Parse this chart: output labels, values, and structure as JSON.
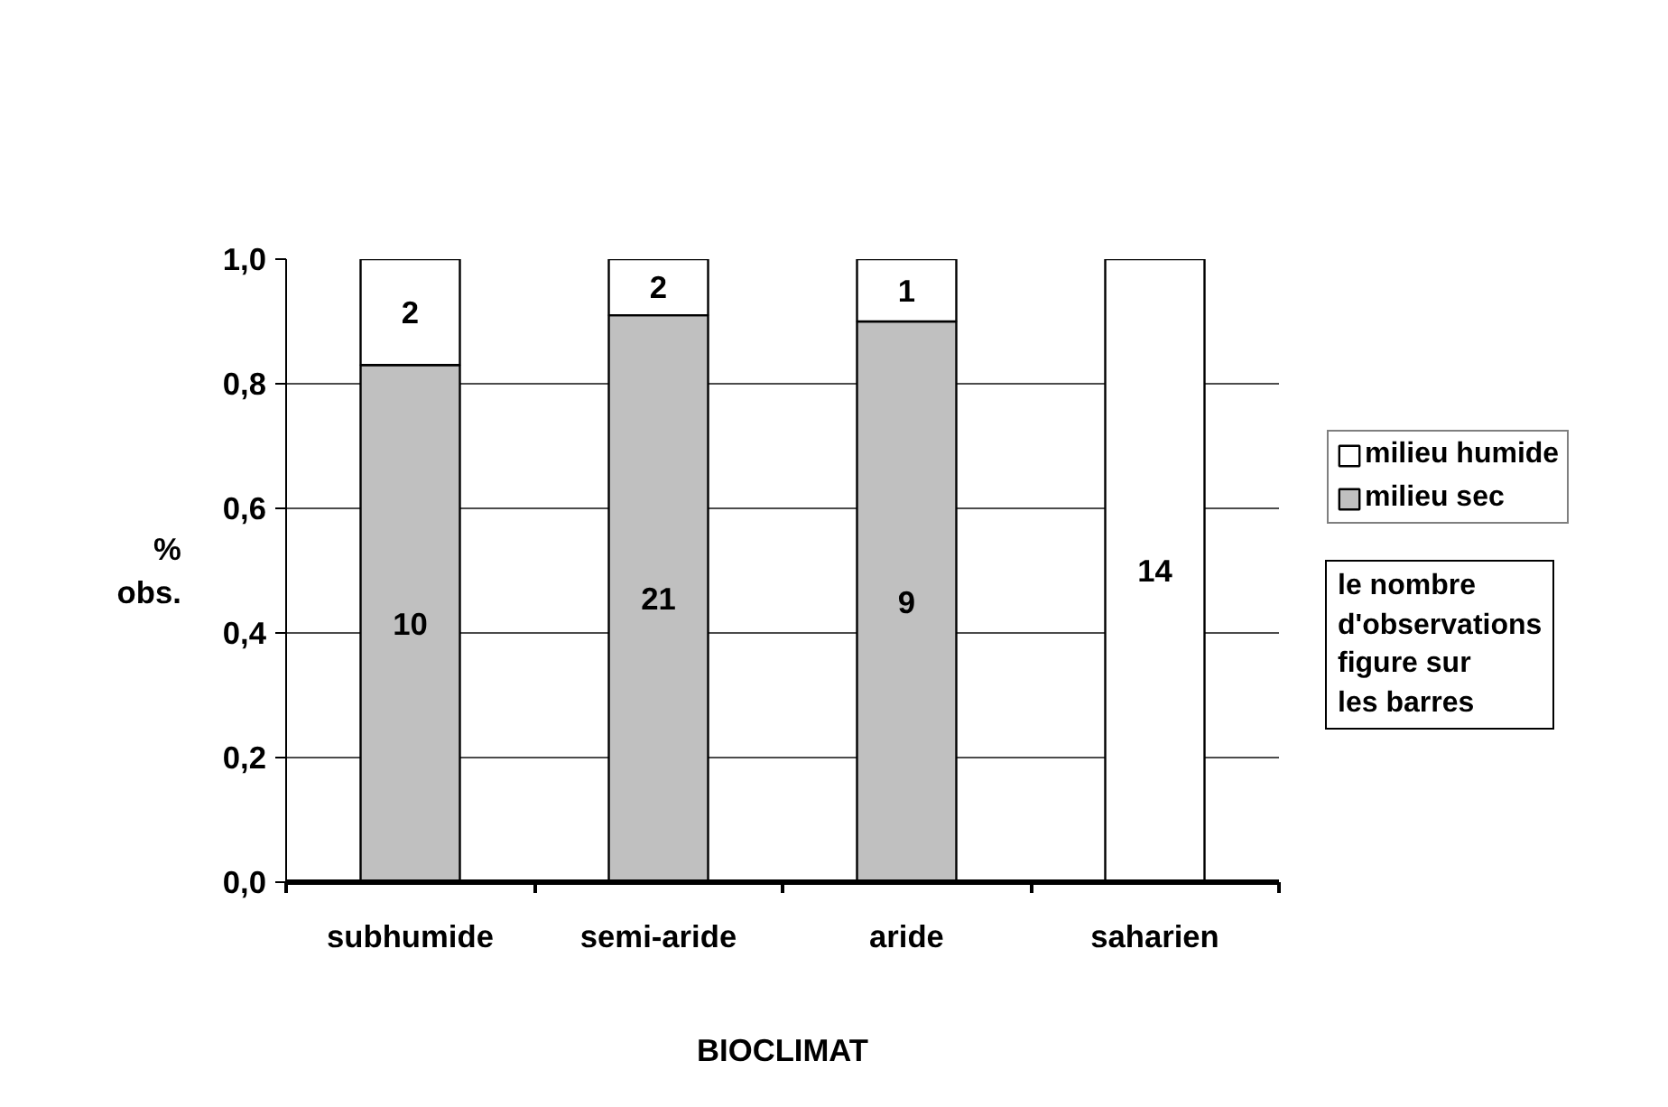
{
  "chart_data": {
    "type": "bar",
    "stacked": true,
    "xlabel": "BIOCLIMAT",
    "ylabel": "% obs.",
    "categories": [
      "subhumide",
      "semi-aride",
      "aride",
      "saharien"
    ],
    "series": [
      {
        "name": "milieu sec",
        "color": "#c0c0c0",
        "values": [
          0.83,
          0.91,
          0.9,
          0
        ]
      },
      {
        "name": "milieu humide",
        "color": "#ffffff",
        "values": [
          0.17,
          0.09,
          0.1,
          1.0
        ]
      }
    ],
    "ylim": [
      0,
      1
    ],
    "yticks": [
      {
        "value": 0,
        "label": "0,0"
      },
      {
        "value": 0.2,
        "label": "0,2"
      },
      {
        "value": 0.4,
        "label": "0,4"
      },
      {
        "value": 0.6,
        "label": "0,6"
      },
      {
        "value": 0.8,
        "label": "0,8"
      },
      {
        "value": 1,
        "label": "1,0"
      }
    ],
    "grid": "y",
    "legend": "right",
    "annotations": [
      "10",
      "21",
      "9",
      "2",
      "2",
      "1",
      "14",
      "le nombre\nd'observations\nfigure sur\nles barres"
    ]
  }
}
